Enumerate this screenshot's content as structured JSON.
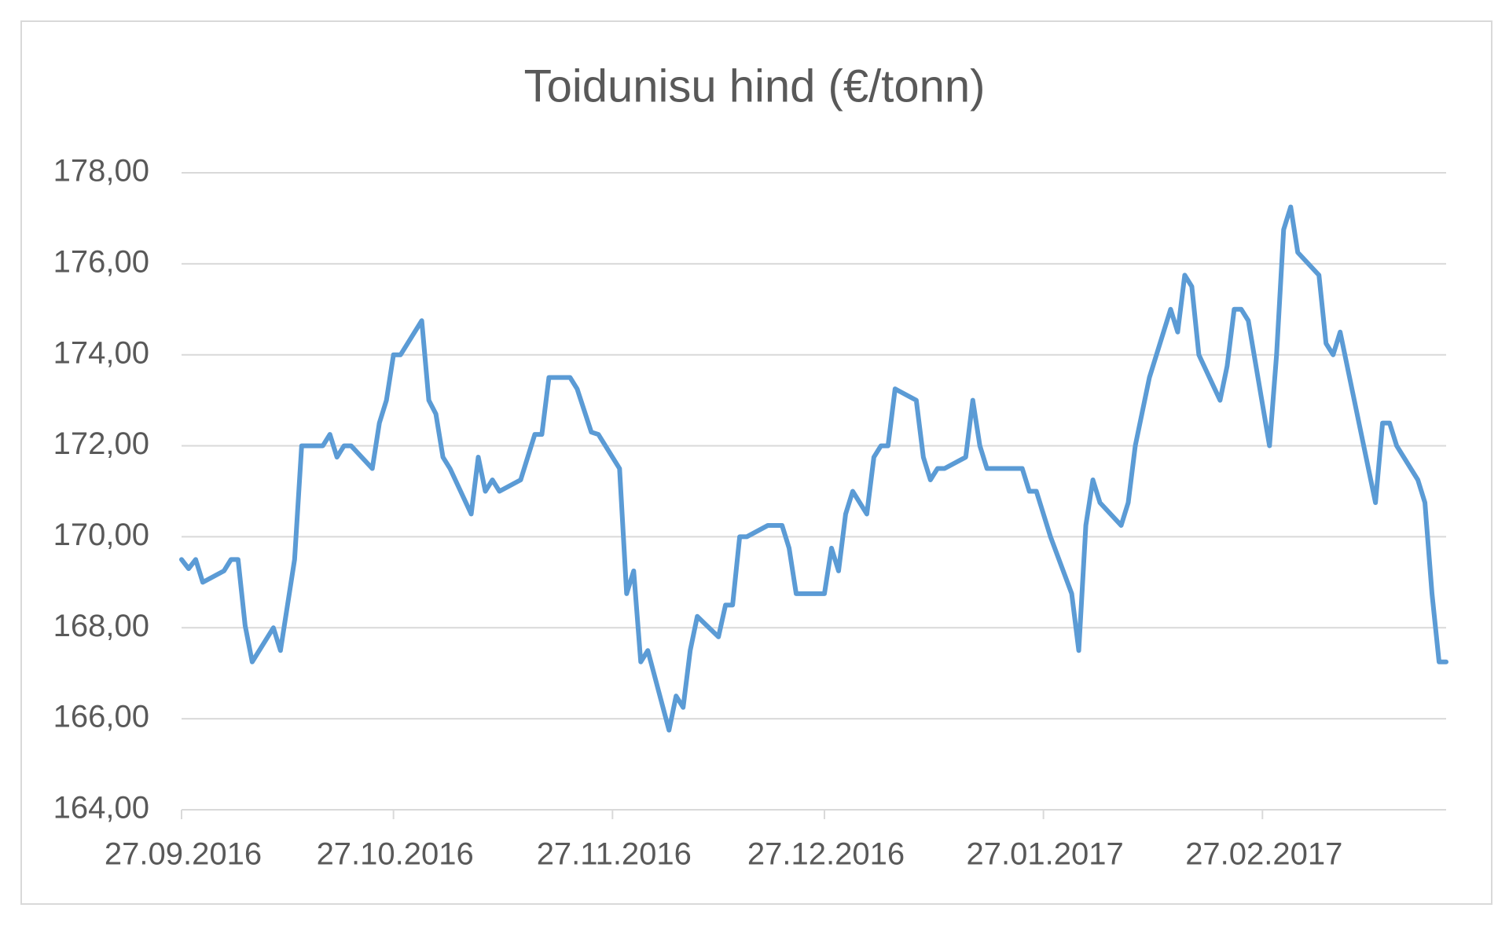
{
  "chart_data": {
    "type": "line",
    "title": "Toidunisu hind (€/tonn)",
    "x": [
      "27.09.2016",
      "28.09.2016",
      "29.09.2016",
      "30.09.2016",
      "03.10.2016",
      "04.10.2016",
      "05.10.2016",
      "06.10.2016",
      "07.10.2016",
      "10.10.2016",
      "11.10.2016",
      "12.10.2016",
      "13.10.2016",
      "14.10.2016",
      "17.10.2016",
      "18.10.2016",
      "19.10.2016",
      "20.10.2016",
      "21.10.2016",
      "24.10.2016",
      "25.10.2016",
      "26.10.2016",
      "27.10.2016",
      "28.10.2016",
      "31.10.2016",
      "01.11.2016",
      "02.11.2016",
      "03.11.2016",
      "04.11.2016",
      "07.11.2016",
      "08.11.2016",
      "09.11.2016",
      "10.11.2016",
      "11.11.2016",
      "14.11.2016",
      "15.11.2016",
      "16.11.2016",
      "17.11.2016",
      "18.11.2016",
      "21.11.2016",
      "22.11.2016",
      "24.11.2016",
      "25.11.2016",
      "28.11.2016",
      "29.11.2016",
      "30.11.2016",
      "01.12.2016",
      "02.12.2016",
      "05.12.2016",
      "06.12.2016",
      "07.12.2016",
      "08.12.2016",
      "09.12.2016",
      "12.12.2016",
      "13.12.2016",
      "14.12.2016",
      "15.12.2016",
      "16.12.2016",
      "19.12.2016",
      "21.12.2016",
      "22.12.2016",
      "23.12.2016",
      "27.12.2016",
      "28.12.2016",
      "29.12.2016",
      "30.12.2016",
      "31.12.2016",
      "02.01.2017",
      "03.01.2017",
      "04.01.2017",
      "05.01.2017",
      "06.01.2017",
      "09.01.2017",
      "10.01.2017",
      "11.01.2017",
      "12.01.2017",
      "13.01.2017",
      "16.01.2017",
      "17.01.2017",
      "18.01.2017",
      "19.01.2017",
      "20.01.2017",
      "24.01.2017",
      "25.01.2017",
      "26.01.2017",
      "28.01.2017",
      "31.01.2017",
      "01.02.2017",
      "02.02.2017",
      "03.02.2017",
      "04.02.2017",
      "07.02.2017",
      "08.02.2017",
      "09.02.2017",
      "11.02.2017",
      "14.02.2017",
      "15.02.2017",
      "16.02.2017",
      "17.02.2017",
      "18.02.2017",
      "21.02.2017",
      "22.02.2017",
      "23.02.2017",
      "24.02.2017",
      "25.02.2017",
      "28.02.2017",
      "01.03.2017",
      "02.03.2017",
      "03.03.2017",
      "04.03.2017",
      "07.03.2017",
      "08.03.2017",
      "09.03.2017",
      "10.03.2017",
      "13.03.2017",
      "15.03.2017",
      "16.03.2017",
      "17.03.2017",
      "18.03.2017",
      "21.03.2017",
      "22.03.2017",
      "23.03.2017",
      "24.03.2017",
      "25.03.2017"
    ],
    "values": [
      169.5,
      169.3,
      169.5,
      169.0,
      169.25,
      169.5,
      169.5,
      168.05,
      167.25,
      168.0,
      167.5,
      168.5,
      169.5,
      172.0,
      172.0,
      172.25,
      171.75,
      172.0,
      172.0,
      171.5,
      172.5,
      173.0,
      174.0,
      174.0,
      174.75,
      173.0,
      172.7,
      171.75,
      171.5,
      170.5,
      171.75,
      171.0,
      171.25,
      171.0,
      171.25,
      171.75,
      172.25,
      172.25,
      173.5,
      173.5,
      173.25,
      172.3,
      172.25,
      171.5,
      168.75,
      169.25,
      167.25,
      167.5,
      165.75,
      166.5,
      166.25,
      167.5,
      168.25,
      167.8,
      168.5,
      168.5,
      170.0,
      170.0,
      170.25,
      170.25,
      169.75,
      168.75,
      168.75,
      169.75,
      169.25,
      170.5,
      171.0,
      170.5,
      171.75,
      172.0,
      172.0,
      173.25,
      173.0,
      171.75,
      171.25,
      171.5,
      171.5,
      171.75,
      173.0,
      172.0,
      171.5,
      171.5,
      171.5,
      171.0,
      171.0,
      170.0,
      168.75,
      167.5,
      170.25,
      171.25,
      170.75,
      170.25,
      170.75,
      172.0,
      173.5,
      175.0,
      174.5,
      175.75,
      175.5,
      174.0,
      173.0,
      173.75,
      175.0,
      175.0,
      174.75,
      172.0,
      174.0,
      176.75,
      177.25,
      176.25,
      175.75,
      174.25,
      174.0,
      174.5,
      172.25,
      170.75,
      172.5,
      172.5,
      172.0,
      171.25,
      170.75,
      168.75,
      167.25,
      167.25
    ],
    "color": "#5b9bd5",
    "xlim": [
      "27.09.2016",
      "25.03.2017"
    ],
    "xticks": [
      "27.09.2016",
      "27.10.2016",
      "27.11.2016",
      "27.12.2016",
      "27.01.2017",
      "27.02.2017"
    ],
    "ylim": [
      164,
      178
    ],
    "yticks": [
      {
        "value": 164,
        "label": "164,00"
      },
      {
        "value": 166,
        "label": "166,00"
      },
      {
        "value": 168,
        "label": "168,00"
      },
      {
        "value": 170,
        "label": "170,00"
      },
      {
        "value": 172,
        "label": "172,00"
      },
      {
        "value": 174,
        "label": "174,00"
      },
      {
        "value": 176,
        "label": "176,00"
      },
      {
        "value": 178,
        "label": "178,00"
      }
    ],
    "grid": true
  }
}
